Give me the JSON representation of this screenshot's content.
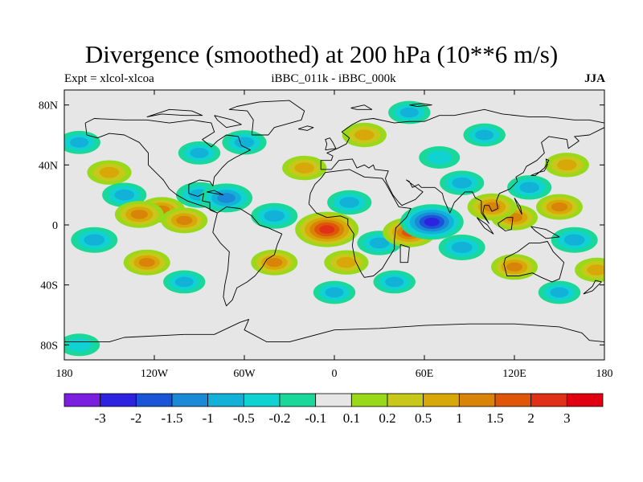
{
  "title": "Divergence (smoothed) at 200 hPa (10**6 m/s)",
  "subtitle_left": "Expt = xlcol-xlcoa",
  "subtitle_center": "iBBC_011k - iBBC_000k",
  "subtitle_right": "JJA",
  "colors": {
    "land_bg": "#e6e6e6",
    "coast": "#000000",
    "bins": [
      "#7a1fe0",
      "#2c22e0",
      "#1a55d8",
      "#1a8ad8",
      "#12b2d8",
      "#10d2d0",
      "#1ad89a",
      "#e6e6e6",
      "#9ad81a",
      "#c8c81a",
      "#d8a808",
      "#d88408",
      "#e05608",
      "#e03018",
      "#e00010"
    ]
  },
  "colorbar": {
    "labels": [
      "-3",
      "-2",
      "-1.5",
      "-1",
      "-0.5",
      "-0.2",
      "-0.1",
      "0.1",
      "0.2",
      "0.5",
      "1",
      "1.5",
      "2",
      "3"
    ]
  },
  "chart_data": {
    "type": "contour-map",
    "variable": "Divergence (smoothed) at 200 hPa",
    "units": "10**6 m/s",
    "season": "JJA",
    "lon_range": [
      -180,
      180
    ],
    "lat_range": [
      -90,
      90
    ],
    "x_tick_values": [
      -180,
      -120,
      -60,
      0,
      60,
      120,
      180
    ],
    "x_tick_labels": [
      "180",
      "120W",
      "60W",
      "0",
      "60E",
      "120E",
      "180"
    ],
    "y_tick_values": [
      80,
      40,
      0,
      -40,
      -80
    ],
    "y_tick_labels": [
      "80N",
      "40N",
      "0",
      "40S",
      "80S"
    ],
    "levels": [
      -3,
      -2,
      -1.5,
      -1,
      -0.5,
      -0.2,
      -0.1,
      0.1,
      0.2,
      0.5,
      1,
      1.5,
      2,
      3
    ],
    "features": [
      {
        "lon": -5,
        "lat": -3,
        "value": 2.5
      },
      {
        "lon": -130,
        "lat": 7,
        "value": 1.2
      },
      {
        "lon": -115,
        "lat": 10,
        "value": 1.0
      },
      {
        "lon": -100,
        "lat": 3,
        "value": 1.0
      },
      {
        "lon": 50,
        "lat": -5,
        "value": 1.6
      },
      {
        "lon": 105,
        "lat": 12,
        "value": 1.2
      },
      {
        "lon": 120,
        "lat": 5,
        "value": 1.0
      },
      {
        "lon": 150,
        "lat": 12,
        "value": 1.0
      },
      {
        "lon": -150,
        "lat": 35,
        "value": 0.8
      },
      {
        "lon": -20,
        "lat": 38,
        "value": 0.8
      },
      {
        "lon": 155,
        "lat": 40,
        "value": 0.8
      },
      {
        "lon": -125,
        "lat": -25,
        "value": 1.0
      },
      {
        "lon": -40,
        "lat": -25,
        "value": 1.0
      },
      {
        "lon": 8,
        "lat": -25,
        "value": 0.8
      },
      {
        "lon": 120,
        "lat": -28,
        "value": 1.0
      },
      {
        "lon": 175,
        "lat": -30,
        "value": 0.8
      },
      {
        "lon": 20,
        "lat": 60,
        "value": 0.8
      },
      {
        "lon": 65,
        "lat": 2,
        "value": -2.5
      },
      {
        "lon": -72,
        "lat": 18,
        "value": -1.5
      },
      {
        "lon": -40,
        "lat": 6,
        "value": -1.0
      },
      {
        "lon": -90,
        "lat": 20,
        "value": -1.0
      },
      {
        "lon": -140,
        "lat": 20,
        "value": -0.8
      },
      {
        "lon": 10,
        "lat": 15,
        "value": -0.8
      },
      {
        "lon": 30,
        "lat": -12,
        "value": -0.8
      },
      {
        "lon": 85,
        "lat": -15,
        "value": -1.0
      },
      {
        "lon": 85,
        "lat": 28,
        "value": -0.8
      },
      {
        "lon": 130,
        "lat": 25,
        "value": -0.8
      },
      {
        "lon": -160,
        "lat": -10,
        "value": -1.0
      },
      {
        "lon": 160,
        "lat": -10,
        "value": -1.0
      },
      {
        "lon": -60,
        "lat": 55,
        "value": -0.8
      },
      {
        "lon": 0,
        "lat": -45,
        "value": -0.6
      },
      {
        "lon": -170,
        "lat": 55,
        "value": -0.6
      },
      {
        "lon": 100,
        "lat": 60,
        "value": -0.6
      },
      {
        "lon": 50,
        "lat": 75,
        "value": -0.6
      },
      {
        "lon": -100,
        "lat": -38,
        "value": -0.6
      },
      {
        "lon": 150,
        "lat": -45,
        "value": -0.6
      },
      {
        "lon": 40,
        "lat": -38,
        "value": -0.6
      },
      {
        "lon": -170,
        "lat": -80,
        "value": -0.5
      },
      {
        "lon": -90,
        "lat": 48,
        "value": -0.6
      },
      {
        "lon": 70,
        "lat": 45,
        "value": -0.5
      }
    ]
  }
}
